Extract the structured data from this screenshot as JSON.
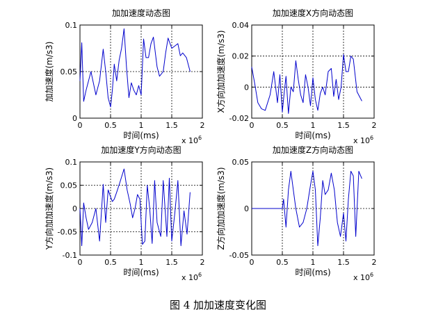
{
  "caption": "图 4  加加速度变化图",
  "chart_data": [
    {
      "type": "line",
      "title": "加加速度动态图",
      "xlabel": "时间(ms)",
      "ylabel": "加加速度(m/s3)",
      "x_multiplier": "x 10",
      "x_exponent": "6",
      "xlim": [
        0,
        2
      ],
      "ylim": [
        0,
        0.1
      ],
      "xticks": [
        "0",
        "0.5",
        "1",
        "1.5",
        "2"
      ],
      "yticks": [
        "0",
        "0.05",
        "0.1"
      ],
      "grid": true,
      "color": "#0000cc",
      "series": [
        {
          "x": [
            0,
            0.03,
            0.06,
            0.1,
            0.18,
            0.26,
            0.32,
            0.38,
            0.42,
            0.46,
            0.5,
            0.53,
            0.56,
            0.6,
            0.64,
            0.68,
            0.72,
            0.76,
            0.8,
            0.84,
            0.88,
            0.92,
            0.96,
            1.0,
            1.04,
            1.08,
            1.12,
            1.16,
            1.2,
            1.26,
            1.3,
            1.36,
            1.4,
            1.44,
            1.5,
            1.56,
            1.6,
            1.64,
            1.68,
            1.74,
            1.8
          ],
          "y": [
            0.04,
            0.081,
            0.018,
            0.03,
            0.05,
            0.025,
            0.04,
            0.074,
            0.05,
            0.022,
            0.012,
            0.03,
            0.058,
            0.04,
            0.062,
            0.075,
            0.096,
            0.055,
            0.022,
            0.038,
            0.03,
            0.025,
            0.035,
            0.025,
            0.085,
            0.065,
            0.065,
            0.08,
            0.087,
            0.055,
            0.045,
            0.05,
            0.07,
            0.086,
            0.075,
            0.078,
            0.08,
            0.067,
            0.07,
            0.065,
            0.05
          ]
        }
      ]
    },
    {
      "type": "line",
      "title": "加加速度X方向动态图",
      "xlabel": "时间(ms)",
      "ylabel": "X方向加加速度(m/s3)",
      "x_multiplier": "x 10",
      "x_exponent": "6",
      "xlim": [
        0,
        2
      ],
      "ylim": [
        -0.02,
        0.04
      ],
      "xticks": [
        "0",
        "0.5",
        "1",
        "1.5",
        "2"
      ],
      "yticks": [
        "-0.02",
        "0",
        "0.02",
        "0.04"
      ],
      "grid": true,
      "color": "#0000cc",
      "series": [
        {
          "x": [
            0,
            0.05,
            0.1,
            0.16,
            0.22,
            0.3,
            0.36,
            0.42,
            0.46,
            0.5,
            0.53,
            0.56,
            0.6,
            0.64,
            0.68,
            0.72,
            0.76,
            0.8,
            0.84,
            0.88,
            0.92,
            0.96,
            1.0,
            1.04,
            1.08,
            1.12,
            1.16,
            1.2,
            1.25,
            1.3,
            1.34,
            1.38,
            1.42,
            1.46,
            1.5,
            1.54,
            1.58,
            1.62,
            1.66,
            1.72,
            1.8
          ],
          "y": [
            0.013,
            0.002,
            -0.01,
            -0.014,
            -0.015,
            -0.005,
            0.01,
            -0.01,
            0.008,
            -0.016,
            -0.004,
            0.007,
            -0.017,
            0.0,
            -0.003,
            0.017,
            0.005,
            -0.005,
            -0.01,
            0.008,
            0.0,
            -0.012,
            0.006,
            -0.008,
            -0.015,
            -0.004,
            0.0,
            -0.005,
            0.01,
            0.012,
            -0.006,
            0.005,
            -0.008,
            0.0,
            0.021,
            0.01,
            0.01,
            0.02,
            0.018,
            -0.003,
            -0.009
          ]
        }
      ]
    },
    {
      "type": "line",
      "title": "加加速度Y方向动态图",
      "xlabel": "时间(ms)",
      "ylabel": "Y方向加加速度(m/s3)",
      "x_multiplier": "x 10",
      "x_exponent": "6",
      "xlim": [
        0,
        2
      ],
      "ylim": [
        -0.1,
        0.1
      ],
      "xticks": [
        "0",
        "0.5",
        "1",
        "1.5",
        "2"
      ],
      "yticks": [
        "-0.1",
        "-0.05",
        "0",
        "0.05",
        "0.1"
      ],
      "grid": true,
      "color": "#0000cc",
      "series": [
        {
          "x": [
            0,
            0.03,
            0.06,
            0.1,
            0.14,
            0.2,
            0.26,
            0.32,
            0.38,
            0.42,
            0.46,
            0.5,
            0.53,
            0.56,
            0.6,
            0.65,
            0.72,
            0.77,
            0.82,
            0.86,
            0.9,
            0.94,
            0.98,
            1.02,
            1.06,
            1.1,
            1.14,
            1.18,
            1.22,
            1.26,
            1.32,
            1.36,
            1.42,
            1.46,
            1.5,
            1.55,
            1.6,
            1.65,
            1.7,
            1.75,
            1.8
          ],
          "y": [
            0,
            -0.08,
            0.012,
            -0.02,
            -0.045,
            -0.03,
            0.0,
            -0.07,
            0.052,
            -0.03,
            0.04,
            0.025,
            0.015,
            0.02,
            0.035,
            0.055,
            0.085,
            0.04,
            0.01,
            -0.02,
            0.0,
            0.03,
            0.02,
            -0.077,
            -0.07,
            0.05,
            0.0,
            -0.075,
            0.06,
            -0.03,
            -0.06,
            0.06,
            -0.06,
            0.065,
            -0.07,
            -0.01,
            0.06,
            -0.08,
            -0.005,
            -0.055,
            0.035
          ]
        }
      ]
    },
    {
      "type": "line",
      "title": "加加速度Z方向动态图",
      "xlabel": "时间(ms)",
      "ylabel": "Z方向加加速度(m/s3)",
      "x_multiplier": "x 10",
      "x_exponent": "6",
      "xlim": [
        0,
        2
      ],
      "ylim": [
        -0.05,
        0.05
      ],
      "xticks": [
        "0",
        "0.5",
        "1",
        "1.5",
        "2"
      ],
      "yticks": [
        "-0.05",
        "0",
        "0.05"
      ],
      "grid": true,
      "color": "#0000cc",
      "series": [
        {
          "x": [
            0,
            0.5,
            0.52,
            0.56,
            0.6,
            0.64,
            0.68,
            0.72,
            0.78,
            0.84,
            0.9,
            0.96,
            1.0,
            1.04,
            1.08,
            1.12,
            1.16,
            1.2,
            1.25,
            1.3,
            1.35,
            1.4,
            1.45,
            1.5,
            1.54,
            1.58,
            1.62,
            1.66,
            1.7,
            1.75,
            1.8
          ],
          "y": [
            0,
            0,
            0.01,
            -0.02,
            0.02,
            0.04,
            0.02,
            0.0,
            -0.02,
            -0.015,
            0.0,
            0.025,
            0.04,
            0.02,
            -0.04,
            -0.01,
            0.03,
            0.015,
            0.02,
            0.038,
            0.02,
            -0.015,
            -0.03,
            -0.005,
            -0.035,
            0.01,
            0.04,
            0.035,
            -0.03,
            0.04,
            0.032
          ]
        }
      ]
    }
  ]
}
